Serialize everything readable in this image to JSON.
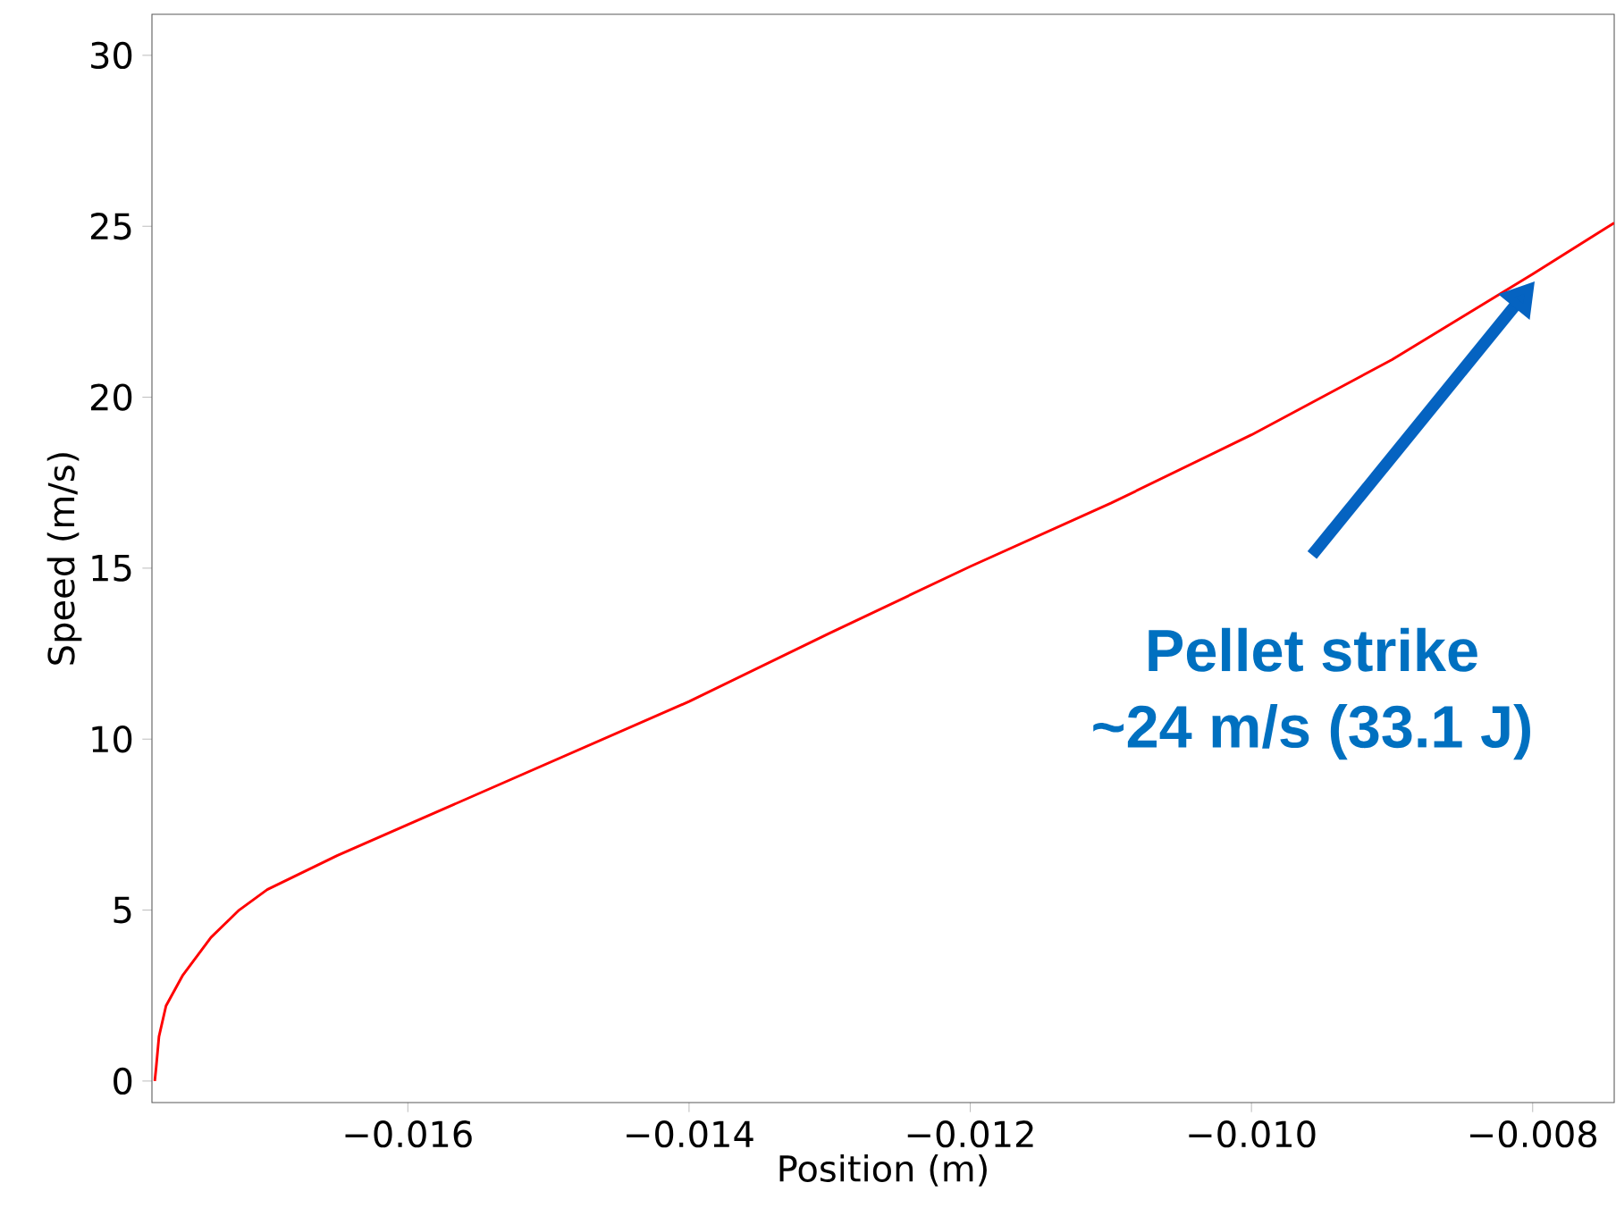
{
  "chart_data": {
    "type": "line",
    "xlabel": "Position (m)",
    "ylabel": "Speed (m/s)",
    "x": [
      -0.0178,
      -0.01779,
      -0.01777,
      -0.01772,
      -0.0176,
      -0.0174,
      -0.0172,
      -0.017,
      -0.0165,
      -0.016,
      -0.015,
      -0.014,
      -0.013,
      -0.012,
      -0.011,
      -0.01,
      -0.009,
      -0.008,
      -0.00742
    ],
    "series": [
      {
        "color": "#ff0000",
        "values": [
          0,
          0.4,
          1.3,
          2.2,
          3.1,
          4.2,
          5.0,
          5.6,
          6.6,
          7.5,
          9.3,
          11.1,
          13.1,
          15.05,
          16.9,
          18.9,
          21.1,
          23.6,
          25.1
        ]
      }
    ],
    "xlim": [
      -0.01782,
      -0.00742
    ],
    "ylim": [
      -0.63,
      31.2
    ],
    "xticks": [
      {
        "value": -0.016,
        "label": "−0.016"
      },
      {
        "value": -0.014,
        "label": "−0.014"
      },
      {
        "value": -0.012,
        "label": "−0.012"
      },
      {
        "value": -0.01,
        "label": "−0.010"
      },
      {
        "value": -0.008,
        "label": "−0.008"
      }
    ],
    "yticks": [
      0,
      5,
      10,
      15,
      20,
      25,
      30
    ],
    "annotations": [
      "Pellet strike",
      "~24 m/s (33.1 J)"
    ]
  }
}
